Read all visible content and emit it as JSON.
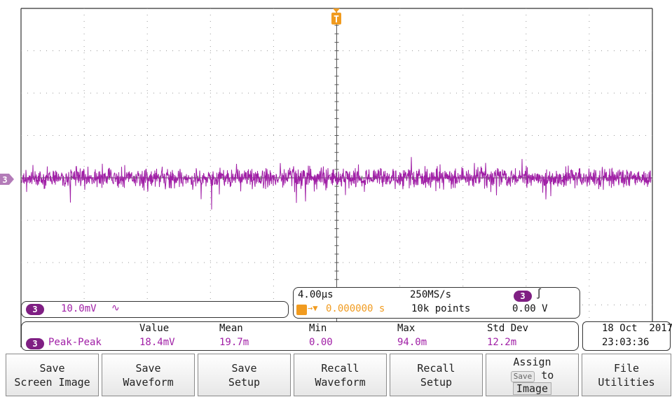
{
  "channel": {
    "number": "3",
    "scale": "10.0mV",
    "coupling_icon": "ac-coupling-icon",
    "coupling_glyph": "∿",
    "color": "#a01fa6"
  },
  "acquisition": {
    "time_per_div": "4.00µs",
    "sample_rate": "250MS/s",
    "trigger_position": "0.000000 s",
    "record_length": "10k points",
    "trigger_channel": "3",
    "trigger_slope_icon": "rising-edge-icon",
    "trigger_slope_glyph": "∫",
    "trigger_level": "0.00 V",
    "trigger_marker": "T"
  },
  "measurements": {
    "headers": [
      "Value",
      "Mean",
      "Min",
      "Max",
      "Std Dev"
    ],
    "rows": [
      {
        "channel": "3",
        "name": "Peak-Peak",
        "value": "18.4mV",
        "mean": "19.7m",
        "min": "0.00",
        "max": "94.0m",
        "std_dev": "12.2m"
      }
    ]
  },
  "datetime": {
    "date": "18 Oct  2017",
    "time": "23:03:36"
  },
  "ground_marker": "3",
  "softkeys": [
    {
      "line1": "Save",
      "line2": "Screen Image"
    },
    {
      "line1": "Save",
      "line2": "Waveform"
    },
    {
      "line1": "Save",
      "line2": "Setup"
    },
    {
      "line1": "Recall",
      "line2": "Waveform"
    },
    {
      "line1": "Recall",
      "line2": "Setup"
    },
    {
      "line1": "Assign",
      "mini": "Save",
      "line2": "to",
      "line3": "Image"
    },
    {
      "line1": "File",
      "line2": "Utilities"
    }
  ],
  "colors": {
    "channel3": "#a01fa6",
    "trigger": "#f19b1f",
    "grid": "#9a9a9a"
  }
}
